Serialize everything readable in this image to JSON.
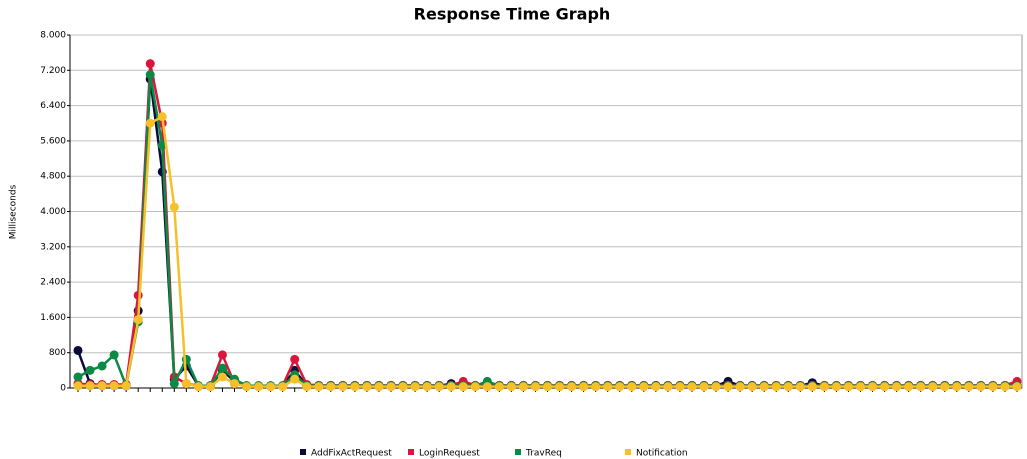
{
  "chart_data": {
    "type": "line",
    "title": "Response Time Graph",
    "y_label": "Milliseconds",
    "categories": [
      null,
      null,
      null,
      null,
      null,
      null,
      null,
      null,
      null,
      null,
      null,
      null,
      null,
      null,
      null,
      null,
      null,
      null,
      null,
      null,
      null,
      null,
      null,
      null,
      null,
      null,
      null,
      null,
      null,
      null,
      null,
      null,
      null,
      null,
      null,
      null,
      null,
      null,
      null,
      null,
      null,
      null,
      null,
      null,
      null,
      null,
      null,
      null,
      null,
      null,
      null,
      null,
      null,
      null,
      null,
      null,
      null,
      null,
      null,
      null,
      null,
      null,
      null,
      null,
      null,
      null,
      null,
      null,
      null,
      null,
      null,
      null,
      null,
      null,
      null,
      null,
      null,
      null,
      null
    ],
    "series": [
      {
        "name": "AddFixActRequest",
        "color": "#0a0a3c",
        "values": [
          850,
          100,
          50,
          50,
          50,
          1750,
          7000,
          4900,
          200,
          500,
          50,
          50,
          400,
          150,
          50,
          50,
          50,
          50,
          400,
          50,
          50,
          50,
          50,
          50,
          50,
          50,
          50,
          50,
          50,
          50,
          50,
          100,
          50,
          50,
          50,
          50,
          50,
          50,
          50,
          50,
          50,
          50,
          50,
          50,
          50,
          50,
          50,
          50,
          50,
          50,
          50,
          50,
          50,
          50,
          150,
          50,
          50,
          50,
          50,
          50,
          50,
          120,
          50,
          50,
          50,
          50,
          50,
          50,
          50,
          50,
          50,
          50,
          50,
          50,
          50,
          50,
          50,
          50,
          50
        ]
      },
      {
        "name": "LoginRequest",
        "color": "#d9173d",
        "values": [
          100,
          80,
          80,
          80,
          80,
          2100,
          7350,
          6000,
          250,
          100,
          50,
          50,
          750,
          100,
          50,
          50,
          50,
          50,
          650,
          80,
          60,
          60,
          60,
          60,
          60,
          60,
          60,
          60,
          60,
          60,
          60,
          60,
          150,
          60,
          60,
          60,
          60,
          60,
          60,
          60,
          60,
          60,
          60,
          60,
          60,
          60,
          60,
          60,
          60,
          60,
          60,
          60,
          60,
          60,
          60,
          60,
          60,
          60,
          60,
          60,
          60,
          60,
          60,
          60,
          60,
          60,
          60,
          60,
          60,
          60,
          60,
          60,
          60,
          60,
          60,
          60,
          60,
          60,
          150
        ]
      },
      {
        "name": "TravReq",
        "color": "#0b8a45",
        "values": [
          250,
          400,
          500,
          750,
          50,
          1500,
          7100,
          5500,
          100,
          650,
          50,
          50,
          450,
          200,
          50,
          50,
          50,
          50,
          300,
          50,
          50,
          50,
          50,
          50,
          50,
          50,
          50,
          50,
          50,
          50,
          50,
          50,
          50,
          50,
          150,
          50,
          50,
          50,
          50,
          50,
          50,
          50,
          50,
          50,
          50,
          50,
          50,
          50,
          50,
          50,
          50,
          50,
          50,
          50,
          50,
          50,
          50,
          50,
          50,
          50,
          50,
          50,
          50,
          50,
          50,
          50,
          50,
          50,
          50,
          50,
          50,
          50,
          50,
          50,
          50,
          50,
          50,
          50,
          50
        ]
      },
      {
        "name": "Notification",
        "color": "#f5c02a",
        "values": [
          50,
          50,
          50,
          50,
          50,
          1550,
          6000,
          6150,
          4100,
          100,
          30,
          30,
          250,
          100,
          30,
          30,
          30,
          30,
          200,
          30,
          30,
          30,
          30,
          30,
          30,
          30,
          30,
          30,
          30,
          30,
          30,
          30,
          30,
          30,
          30,
          30,
          30,
          30,
          30,
          30,
          30,
          30,
          30,
          30,
          30,
          30,
          30,
          30,
          30,
          30,
          30,
          30,
          30,
          30,
          30,
          30,
          30,
          30,
          30,
          30,
          30,
          30,
          30,
          30,
          30,
          30,
          30,
          30,
          30,
          30,
          30,
          30,
          30,
          30,
          30,
          30,
          30,
          30,
          30
        ]
      }
    ],
    "ylim": [
      0,
      8000
    ],
    "yticks": [
      0,
      {
        "value": 800,
        "label": "800"
      },
      {
        "value": 1600,
        "label": "1.600"
      },
      {
        "value": 2400,
        "label": "2.400"
      },
      {
        "value": 3200,
        "label": "3.200"
      },
      {
        "value": 4000,
        "label": "4.000"
      },
      {
        "value": 4800,
        "label": "4.800"
      },
      {
        "value": 5600,
        "label": "5.600"
      },
      {
        "value": 6400,
        "label": "6.400"
      },
      {
        "value": 7200,
        "label": "7.200"
      },
      {
        "value": 8000,
        "label": "8.000"
      }
    ],
    "grid": true
  }
}
